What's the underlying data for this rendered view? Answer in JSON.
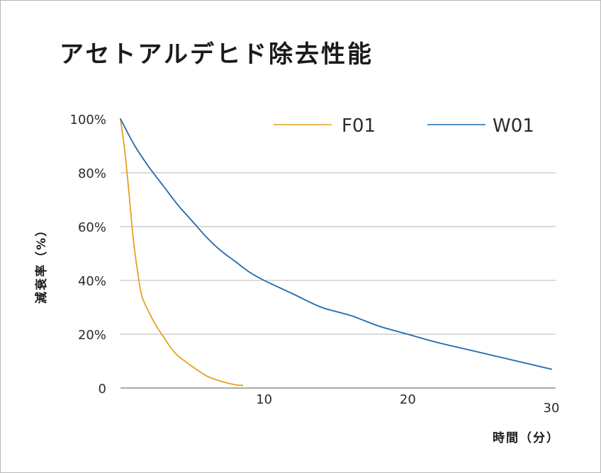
{
  "chart_data": {
    "type": "line",
    "title": "アセトアルデヒド除去性能",
    "xlabel": "時間（分）",
    "ylabel": "減衰率（%）",
    "xlim": [
      0,
      30
    ],
    "ylim": [
      0,
      100
    ],
    "x_ticks": [
      {
        "value": 10,
        "label": "10"
      },
      {
        "value": 20,
        "label": "20"
      },
      {
        "value": 30,
        "label": "30"
      }
    ],
    "y_ticks": [
      {
        "value": 0,
        "label": "0"
      },
      {
        "value": 20,
        "label": "20%"
      },
      {
        "value": 40,
        "label": "40%"
      },
      {
        "value": 60,
        "label": "60%"
      },
      {
        "value": 80,
        "label": "80%"
      },
      {
        "value": 100,
        "label": "100%"
      }
    ],
    "grid": true,
    "legend_position": "top-right",
    "series": [
      {
        "name": "F01",
        "color": "#e8a020",
        "x": [
          0,
          0.3,
          0.6,
          0.9,
          1.2,
          1.5,
          2.0,
          2.5,
          3.0,
          3.5,
          4.0,
          5.0,
          6.0,
          7.0,
          8.0,
          8.5
        ],
        "y": [
          100,
          88,
          72,
          55,
          43,
          34,
          28,
          23,
          19,
          15,
          12,
          8,
          4.5,
          2.5,
          1.2,
          1.0
        ]
      },
      {
        "name": "W01",
        "color": "#1f6bb0",
        "x": [
          0,
          1,
          2,
          3,
          4,
          5,
          6,
          7,
          8,
          9,
          10,
          12,
          14,
          16,
          18,
          20,
          22,
          24,
          26,
          28,
          30
        ],
        "y": [
          100,
          90,
          82,
          75,
          68,
          62,
          56,
          51,
          47,
          43,
          40,
          35,
          30,
          27,
          23,
          20,
          17,
          14.5,
          12,
          9.5,
          7
        ]
      }
    ]
  }
}
